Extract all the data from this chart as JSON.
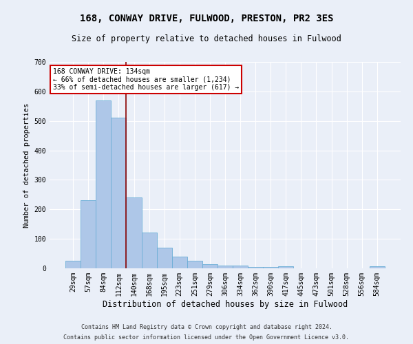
{
  "title": "168, CONWAY DRIVE, FULWOOD, PRESTON, PR2 3ES",
  "subtitle": "Size of property relative to detached houses in Fulwood",
  "xlabel": "Distribution of detached houses by size in Fulwood",
  "ylabel": "Number of detached properties",
  "categories": [
    "29sqm",
    "57sqm",
    "84sqm",
    "112sqm",
    "140sqm",
    "168sqm",
    "195sqm",
    "223sqm",
    "251sqm",
    "279sqm",
    "306sqm",
    "334sqm",
    "362sqm",
    "390sqm",
    "417sqm",
    "445sqm",
    "473sqm",
    "501sqm",
    "528sqm",
    "556sqm",
    "584sqm"
  ],
  "values": [
    26,
    232,
    570,
    510,
    240,
    122,
    70,
    40,
    25,
    13,
    10,
    10,
    5,
    5,
    7,
    0,
    0,
    0,
    0,
    0,
    7
  ],
  "bar_color": "#aec7e8",
  "bar_edge_color": "#6baed6",
  "marker_color": "#8b0000",
  "marker_index": 4,
  "annotation_line1": "168 CONWAY DRIVE: 134sqm",
  "annotation_line2": "← 66% of detached houses are smaller (1,234)",
  "annotation_line3": "33% of semi-detached houses are larger (617) →",
  "annotation_box_color": "#ffffff",
  "annotation_box_edge": "#cc0000",
  "footnote1": "Contains HM Land Registry data © Crown copyright and database right 2024.",
  "footnote2": "Contains public sector information licensed under the Open Government Licence v3.0.",
  "bg_color": "#eaeff8",
  "plot_bg_color": "#eaeff8",
  "grid_color": "#ffffff",
  "yticks": [
    0,
    100,
    200,
    300,
    400,
    500,
    600,
    700
  ],
  "ylim": [
    0,
    700
  ],
  "title_fontsize": 10,
  "subtitle_fontsize": 8.5,
  "ylabel_fontsize": 7.5,
  "xlabel_fontsize": 8.5,
  "tick_fontsize": 7,
  "annot_fontsize": 7,
  "footnote_fontsize": 6
}
